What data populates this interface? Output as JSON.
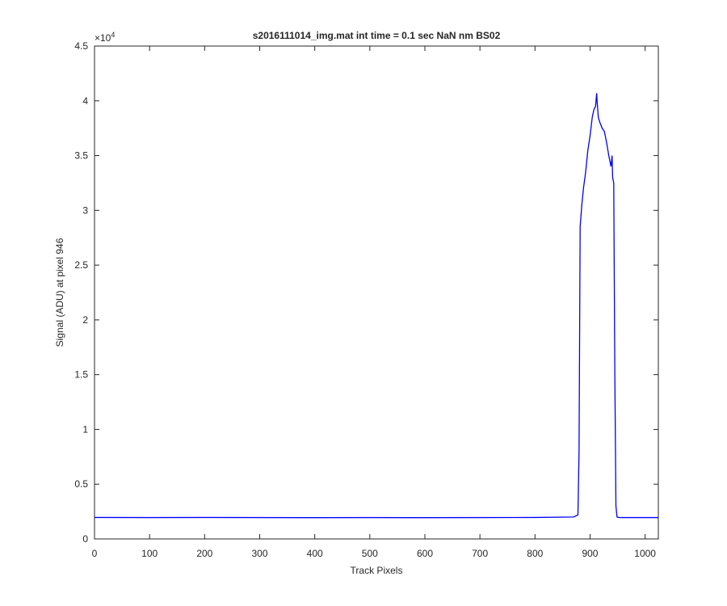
{
  "chart_data": {
    "type": "line",
    "title": "s2016111014_img.mat int time = 0.1 sec  NaN nm BS02",
    "x_label": "Track Pixels",
    "y_label": "Signal (ADU) at pixel 946",
    "y_exponent": {
      "base": "×10",
      "power": "4"
    },
    "x": [
      0,
      100,
      200,
      300,
      400,
      500,
      600,
      700,
      800,
      870,
      878,
      880,
      882,
      885,
      888,
      892,
      896,
      900,
      904,
      907,
      910,
      912,
      913,
      915,
      918,
      922,
      926,
      930,
      934,
      938,
      940,
      941,
      943,
      945,
      947,
      949,
      952,
      960,
      1024
    ],
    "series": [
      {
        "color": "#0000ff",
        "values": [
          0.196,
          0.195,
          0.196,
          0.195,
          0.194,
          0.195,
          0.194,
          0.195,
          0.196,
          0.2,
          0.22,
          0.8,
          2.85,
          3.05,
          3.2,
          3.35,
          3.55,
          3.68,
          3.85,
          3.92,
          3.95,
          4.07,
          3.98,
          3.85,
          3.8,
          3.75,
          3.72,
          3.62,
          3.5,
          3.4,
          3.5,
          3.3,
          3.25,
          1.5,
          0.3,
          0.2,
          0.196,
          0.195,
          0.195
        ]
      }
    ],
    "xlim": [
      0,
      1024
    ],
    "xticks": [
      0,
      100,
      200,
      300,
      400,
      500,
      600,
      700,
      800,
      900,
      1000
    ],
    "ylim": [
      0,
      4.5
    ],
    "yticks": [
      0,
      0.5,
      1,
      1.5,
      2,
      2.5,
      3,
      3.5,
      4,
      4.5
    ],
    "grid": false
  }
}
